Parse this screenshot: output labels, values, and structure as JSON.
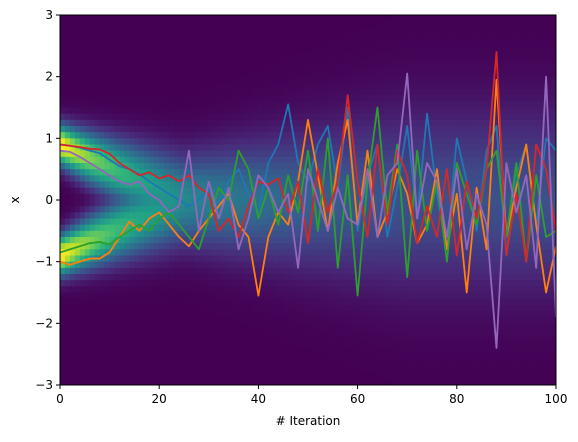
{
  "chart_data": {
    "type": "line",
    "title": "",
    "xlabel": "# Iteration",
    "ylabel": "x",
    "xlim": [
      0,
      100
    ],
    "ylim": [
      -3,
      3
    ],
    "xticks": [
      "0",
      "20",
      "40",
      "60",
      "80",
      "100"
    ],
    "yticks": [
      "3",
      "2",
      "1",
      "0",
      "−1",
      "−2",
      "−3"
    ],
    "grid": false,
    "legend": "none",
    "background": {
      "kind": "density heatmap",
      "colormap": "viridis",
      "description_values": {
        "upper_mode_start": 0.9,
        "lower_mode_start": -0.9,
        "merge_iteration": 25,
        "final_spread": 0.95
      }
    },
    "series": [
      {
        "color": "#1f77b4",
        "x": [
          0,
          2,
          4,
          6,
          8,
          10,
          12,
          14,
          16,
          18,
          20,
          22,
          24,
          26,
          28,
          30,
          32,
          34,
          36,
          38,
          40,
          42,
          44,
          46,
          48,
          50,
          52,
          54,
          56,
          58,
          60,
          62,
          64,
          66,
          68,
          70,
          72,
          74,
          76,
          78,
          80,
          82,
          84,
          86,
          88,
          90,
          92,
          94,
          96,
          98,
          100
        ],
        "y": [
          0.9,
          0.88,
          0.85,
          0.8,
          0.76,
          0.65,
          0.55,
          0.5,
          0.42,
          0.3,
          0.2,
          0.1,
          0.0,
          -0.1,
          0.0,
          0.2,
          -0.1,
          0.3,
          0.5,
          0.1,
          -0.2,
          0.6,
          0.9,
          1.55,
          0.6,
          0.3,
          0.9,
          1.2,
          0.2,
          1.5,
          -0.5,
          0.4,
          0.9,
          -0.6,
          0.2,
          1.2,
          -0.3,
          1.4,
          0.1,
          -0.8,
          1.0,
          0.3,
          -0.5,
          0.8,
          1.2,
          -0.9,
          0.4,
          0.9,
          -0.4,
          1.0,
          0.8
        ]
      },
      {
        "color": "#ff7f0e",
        "x": [
          0,
          2,
          4,
          6,
          8,
          10,
          12,
          14,
          16,
          18,
          20,
          22,
          24,
          26,
          28,
          30,
          32,
          34,
          36,
          38,
          40,
          42,
          44,
          46,
          48,
          50,
          52,
          54,
          56,
          58,
          60,
          62,
          64,
          66,
          68,
          70,
          72,
          74,
          76,
          78,
          80,
          82,
          84,
          86,
          88,
          90,
          92,
          94,
          96,
          98,
          100
        ],
        "y": [
          -1.0,
          -1.05,
          -1.0,
          -0.95,
          -0.95,
          -0.85,
          -0.6,
          -0.35,
          -0.5,
          -0.3,
          -0.2,
          -0.4,
          -0.6,
          -0.75,
          -0.5,
          -0.3,
          -0.1,
          0.1,
          -0.4,
          -0.6,
          -1.55,
          -0.6,
          -0.2,
          -0.4,
          0.3,
          1.3,
          0.4,
          -0.5,
          0.6,
          1.3,
          -0.4,
          0.8,
          -0.6,
          -0.2,
          0.5,
          0.1,
          -0.7,
          -0.4,
          0.5,
          -0.8,
          0.1,
          -1.5,
          0.2,
          -0.8,
          1.95,
          -0.6,
          0.2,
          0.9,
          -0.4,
          -1.5,
          -0.75
        ]
      },
      {
        "color": "#2ca02c",
        "x": [
          0,
          2,
          4,
          6,
          8,
          10,
          12,
          14,
          16,
          18,
          20,
          22,
          24,
          26,
          28,
          30,
          32,
          34,
          36,
          38,
          40,
          42,
          44,
          46,
          48,
          50,
          52,
          54,
          56,
          58,
          60,
          62,
          64,
          66,
          68,
          70,
          72,
          74,
          76,
          78,
          80,
          82,
          84,
          86,
          88,
          90,
          92,
          94,
          96,
          98,
          100
        ],
        "y": [
          -0.85,
          -0.8,
          -0.75,
          -0.7,
          -0.68,
          -0.72,
          -0.6,
          -0.5,
          -0.4,
          -0.5,
          -0.3,
          -0.2,
          -0.4,
          -0.6,
          -0.8,
          -0.3,
          0.2,
          0.0,
          0.8,
          0.5,
          -0.3,
          0.2,
          -0.4,
          0.4,
          -0.2,
          0.8,
          -0.5,
          1.0,
          -1.1,
          0.4,
          -1.55,
          0.3,
          1.5,
          -0.2,
          0.9,
          -1.25,
          0.8,
          -0.5,
          0.3,
          -1.0,
          0.6,
          0.1,
          -0.4,
          0.5,
          0.8,
          -0.6,
          0.6,
          -1.0,
          0.4,
          -0.6,
          -0.5
        ]
      },
      {
        "color": "#d62728",
        "x": [
          0,
          2,
          4,
          6,
          8,
          10,
          12,
          14,
          16,
          18,
          20,
          22,
          24,
          26,
          28,
          30,
          32,
          34,
          36,
          38,
          40,
          42,
          44,
          46,
          48,
          50,
          52,
          54,
          56,
          58,
          60,
          62,
          64,
          66,
          68,
          70,
          72,
          74,
          76,
          78,
          80,
          82,
          84,
          86,
          88,
          90,
          92,
          94,
          96,
          98,
          100
        ],
        "y": [
          0.9,
          0.88,
          0.86,
          0.83,
          0.82,
          0.75,
          0.6,
          0.5,
          0.4,
          0.45,
          0.35,
          0.4,
          0.3,
          0.4,
          0.2,
          0.1,
          -0.5,
          -0.3,
          -0.6,
          -0.1,
          0.3,
          0.25,
          0.35,
          -0.2,
          0.3,
          -0.7,
          0.5,
          -0.2,
          0.3,
          1.7,
          0.3,
          -0.6,
          0.9,
          -0.4,
          0.8,
          0.4,
          -0.7,
          -0.1,
          -0.6,
          0.5,
          -0.9,
          0.3,
          -0.3,
          0.5,
          2.4,
          -0.9,
          0.1,
          -1.0,
          0.9,
          0.5,
          -0.5
        ]
      },
      {
        "color": "#9467bd",
        "x": [
          0,
          2,
          4,
          6,
          8,
          10,
          12,
          14,
          16,
          18,
          20,
          22,
          24,
          26,
          28,
          30,
          32,
          34,
          36,
          38,
          40,
          42,
          44,
          46,
          48,
          50,
          52,
          54,
          56,
          58,
          60,
          62,
          64,
          66,
          68,
          70,
          72,
          74,
          76,
          78,
          80,
          82,
          84,
          86,
          88,
          90,
          92,
          94,
          96,
          98,
          100
        ],
        "y": [
          0.8,
          0.78,
          0.7,
          0.6,
          0.5,
          0.4,
          0.3,
          0.25,
          0.3,
          0.1,
          0.0,
          -0.2,
          -0.1,
          0.8,
          -0.5,
          0.3,
          -0.3,
          0.2,
          -0.8,
          -0.3,
          0.4,
          0.2,
          -0.2,
          0.1,
          -1.1,
          0.5,
          0.0,
          -0.5,
          0.2,
          -0.3,
          -0.4,
          0.5,
          -0.6,
          0.4,
          0.6,
          2.05,
          -0.3,
          0.6,
          0.3,
          -0.6,
          0.5,
          -0.8,
          0.1,
          -0.4,
          -2.4,
          0.6,
          -0.2,
          0.4,
          -1.1,
          2.0,
          -1.9
        ]
      }
    ]
  }
}
